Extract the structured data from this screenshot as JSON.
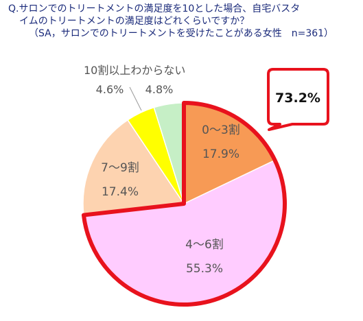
{
  "title": {
    "line1": "Q.サロンでのトリートメントの満足度を10とした場合、自宅バスタ",
    "line2": "イムのトリートメントの満足度はどれくらいですか？",
    "line3": "（SA，サロンでのトリートメントを受けたことがある女性　n=361）"
  },
  "callout": {
    "text": "73.2%"
  },
  "chart_data": {
    "type": "pie",
    "total": 100,
    "start": "top",
    "direction": "clockwise",
    "slices": [
      {
        "label": "0～3割",
        "value": 17.9,
        "value_text": "17.9%",
        "color": "#f79a55"
      },
      {
        "label": "4～6割",
        "value": 55.3,
        "value_text": "55.3%",
        "color": "#ffccff"
      },
      {
        "label": "7～9割",
        "value": 17.4,
        "value_text": "17.4%",
        "color": "#fdd3b0"
      },
      {
        "label": "",
        "value": 4.6,
        "value_text": "4.6%",
        "color": "#ffff00"
      },
      {
        "label": "",
        "value": 4.8,
        "value_text": "4.8%",
        "color": "#c6efc6"
      }
    ],
    "outside_label": "10割以上わからない",
    "highlight": {
      "slices": [
        "0～3割",
        "4～6割"
      ],
      "color": "#e8121d"
    }
  }
}
